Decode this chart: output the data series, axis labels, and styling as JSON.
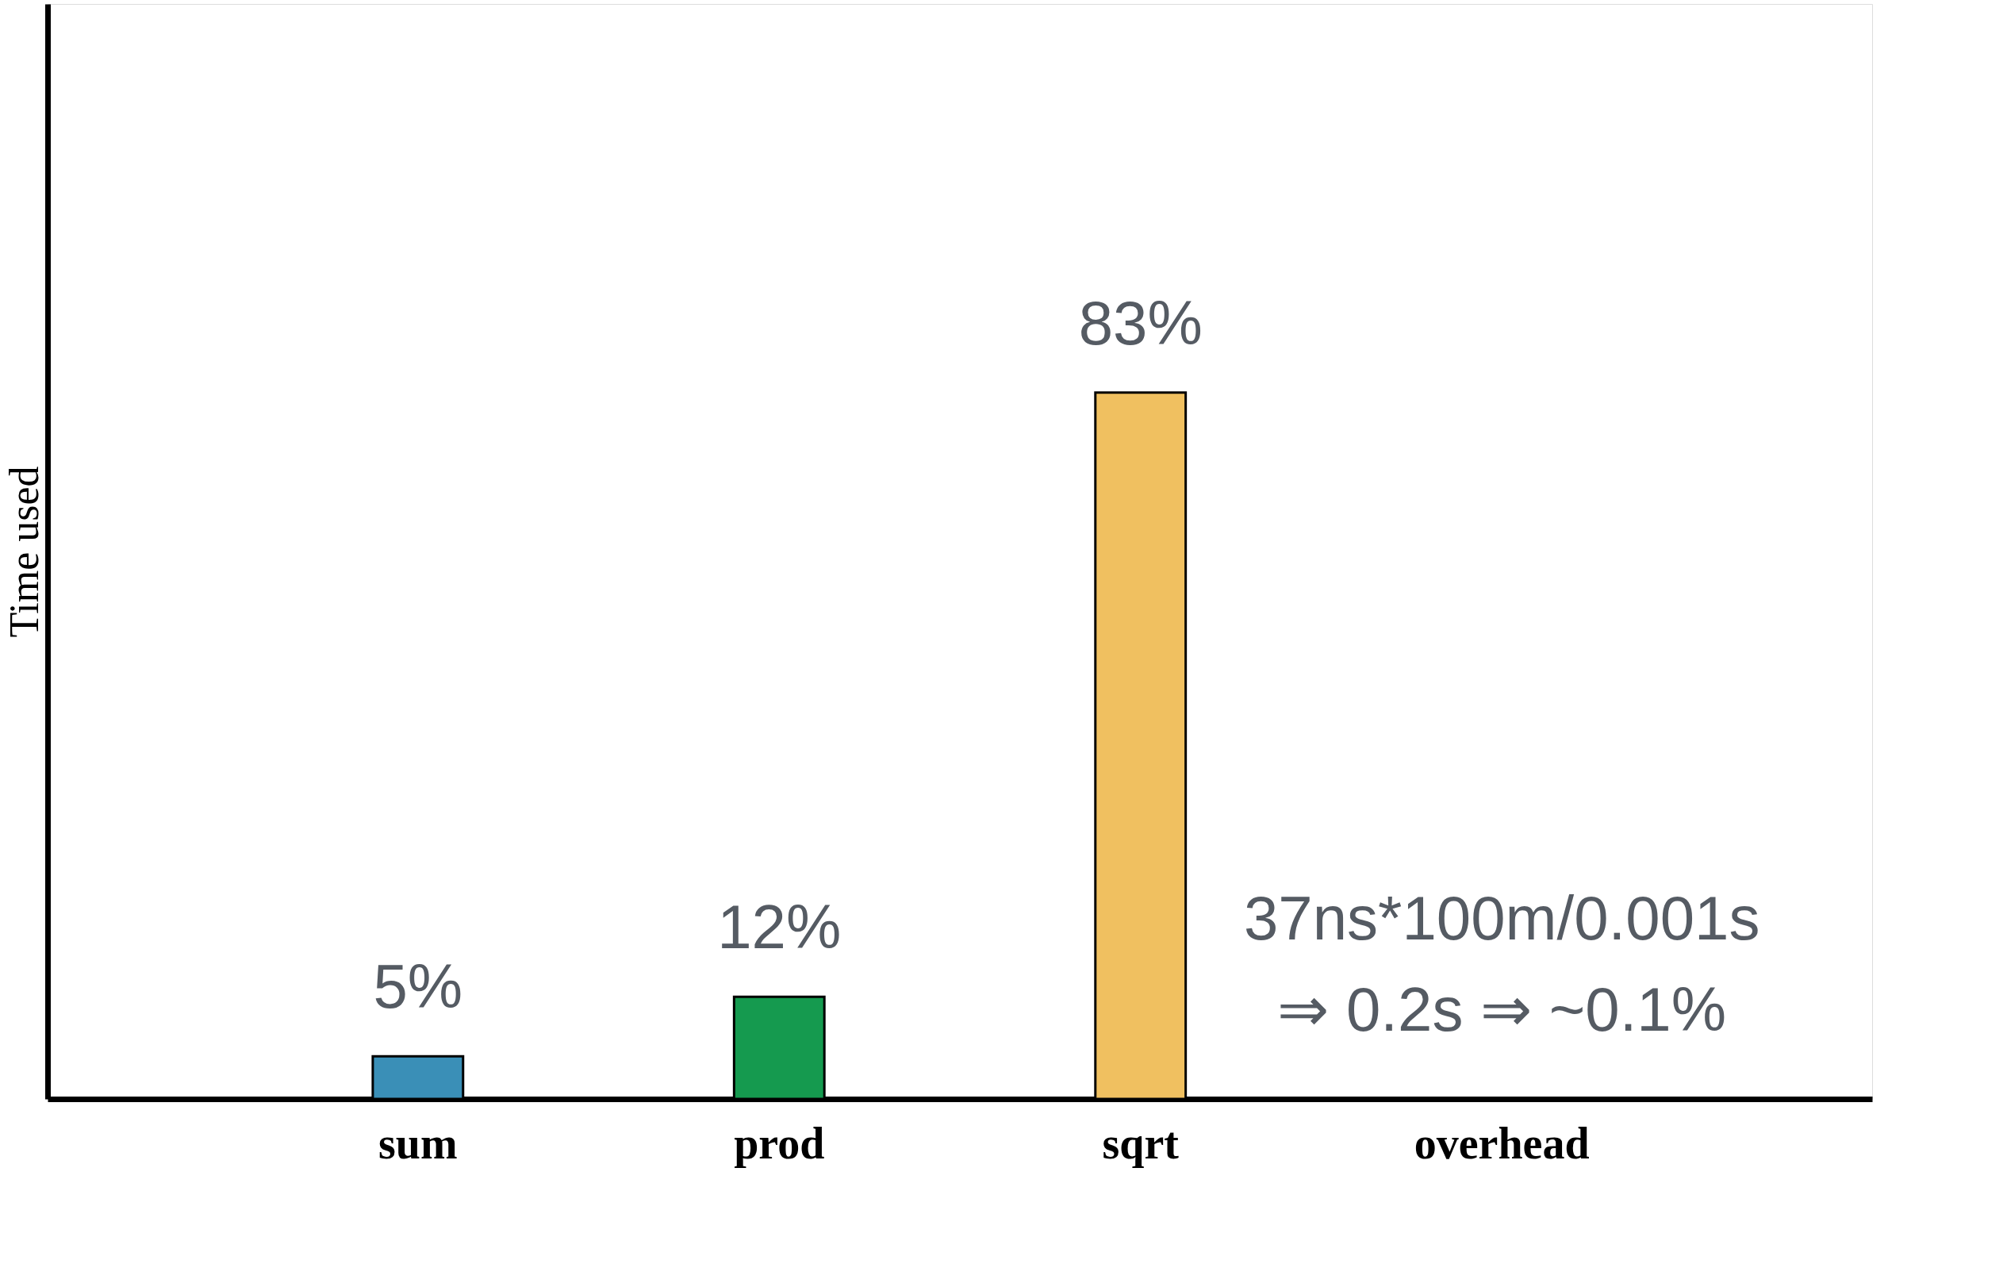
{
  "chart_data": {
    "type": "bar",
    "ylabel": "Time used",
    "categories": [
      "sum",
      "prod",
      "sqrt",
      "overhead"
    ],
    "values": [
      5,
      12,
      83,
      0.1
    ],
    "colors": [
      "#3a8fb7",
      "#159a4f",
      "#f0c060",
      "#e0304a"
    ],
    "value_labels": [
      "5%",
      "12%",
      "83%",
      null
    ],
    "annotations": [
      "37ns*100m/0.001s",
      "⇒ 0.2s ⇒ ~0.1%"
    ],
    "tick_labels": "x",
    "grid": false
  }
}
